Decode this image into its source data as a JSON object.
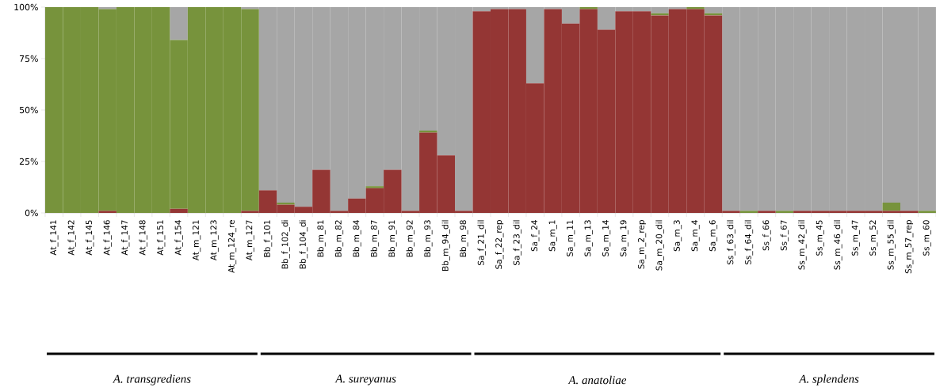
{
  "chart_data": {
    "type": "bar",
    "stacked": true,
    "categories": [
      "At_f_141",
      "At_f_142",
      "At_f_145",
      "At_f_146",
      "At_f_147",
      "At_f_148",
      "At_f_151",
      "At_f_154",
      "At_m_121",
      "At_m_123",
      "At_m_124_re",
      "At_m_127",
      "Bb_f_101",
      "Bb_f_102_di",
      "Bb_f_104_di",
      "Bb_m_81",
      "Bb_m_82",
      "Bb_m_84",
      "Bb_m_87",
      "Bb_m_91",
      "Bb_m_92",
      "Bb_m_93",
      "Bb_m_94_dil",
      "Bb_m_98",
      "Sa_f_21_dil",
      "Sa_f_22_rep",
      "Sa_f_23_dil",
      "Sa_f_24",
      "Sa_m_1",
      "Sa_m_11",
      "Sa_m_13",
      "Sa_m_14",
      "Sa_m_19",
      "Sa_m_2_rep",
      "Sa_m_20_dil",
      "Sa_m_3",
      "Sa_m_4",
      "Sa_m_6",
      "Ss_f_63_dil",
      "Ss_f_64_dil",
      "Ss_f_66",
      "Ss_f_67",
      "Ss_m_42_dil",
      "Ss_m_45",
      "Ss_m_46_dil",
      "Ss_m_47",
      "Ss_m_52",
      "Ss_m_55_dil",
      "Ss_m_57_rep",
      "Ss_m_60"
    ],
    "series": [
      {
        "color": "#943634",
        "values": [
          0,
          0,
          0,
          1,
          0,
          0,
          0,
          2,
          0,
          0,
          0,
          1,
          11,
          4,
          3,
          21,
          1,
          7,
          12,
          21,
          1,
          39,
          28,
          1,
          98,
          99,
          99,
          63,
          99,
          92,
          99,
          89,
          98,
          98,
          96,
          99,
          99,
          96,
          1,
          0,
          1,
          0,
          1,
          1,
          1,
          1,
          1,
          1,
          1,
          0
        ]
      },
      {
        "color": "#77933c",
        "values": [
          100,
          100,
          100,
          98,
          100,
          100,
          100,
          82,
          100,
          100,
          100,
          98,
          0,
          1,
          0,
          0,
          0,
          0,
          1,
          0,
          0,
          1,
          0,
          0,
          0,
          0,
          0,
          0,
          0,
          0,
          1,
          0,
          0,
          0,
          1,
          0,
          1,
          1,
          0,
          1,
          0,
          1,
          0,
          0,
          0,
          0,
          0,
          4,
          0,
          1
        ]
      },
      {
        "color": "#a6a6a6",
        "values": [
          0,
          0,
          0,
          1,
          0,
          0,
          0,
          16,
          0,
          0,
          0,
          1,
          89,
          95,
          97,
          79,
          99,
          93,
          87,
          79,
          99,
          60,
          72,
          99,
          2,
          1,
          1,
          37,
          1,
          8,
          0,
          11,
          2,
          2,
          3,
          1,
          0,
          3,
          99,
          99,
          99,
          99,
          99,
          99,
          99,
          99,
          99,
          95,
          99,
          99
        ]
      }
    ],
    "ylim": [
      0,
      100
    ],
    "yticks": [
      {
        "value": 0,
        "label": "0%"
      },
      {
        "value": 25,
        "label": "25%"
      },
      {
        "value": 50,
        "label": "50%"
      },
      {
        "value": 75,
        "label": "75%"
      },
      {
        "value": 100,
        "label": "100%"
      }
    ],
    "annotations": [
      "A. transgrediens",
      "A. sureyanus",
      "A. anatoliae",
      "A. splendens"
    ]
  }
}
